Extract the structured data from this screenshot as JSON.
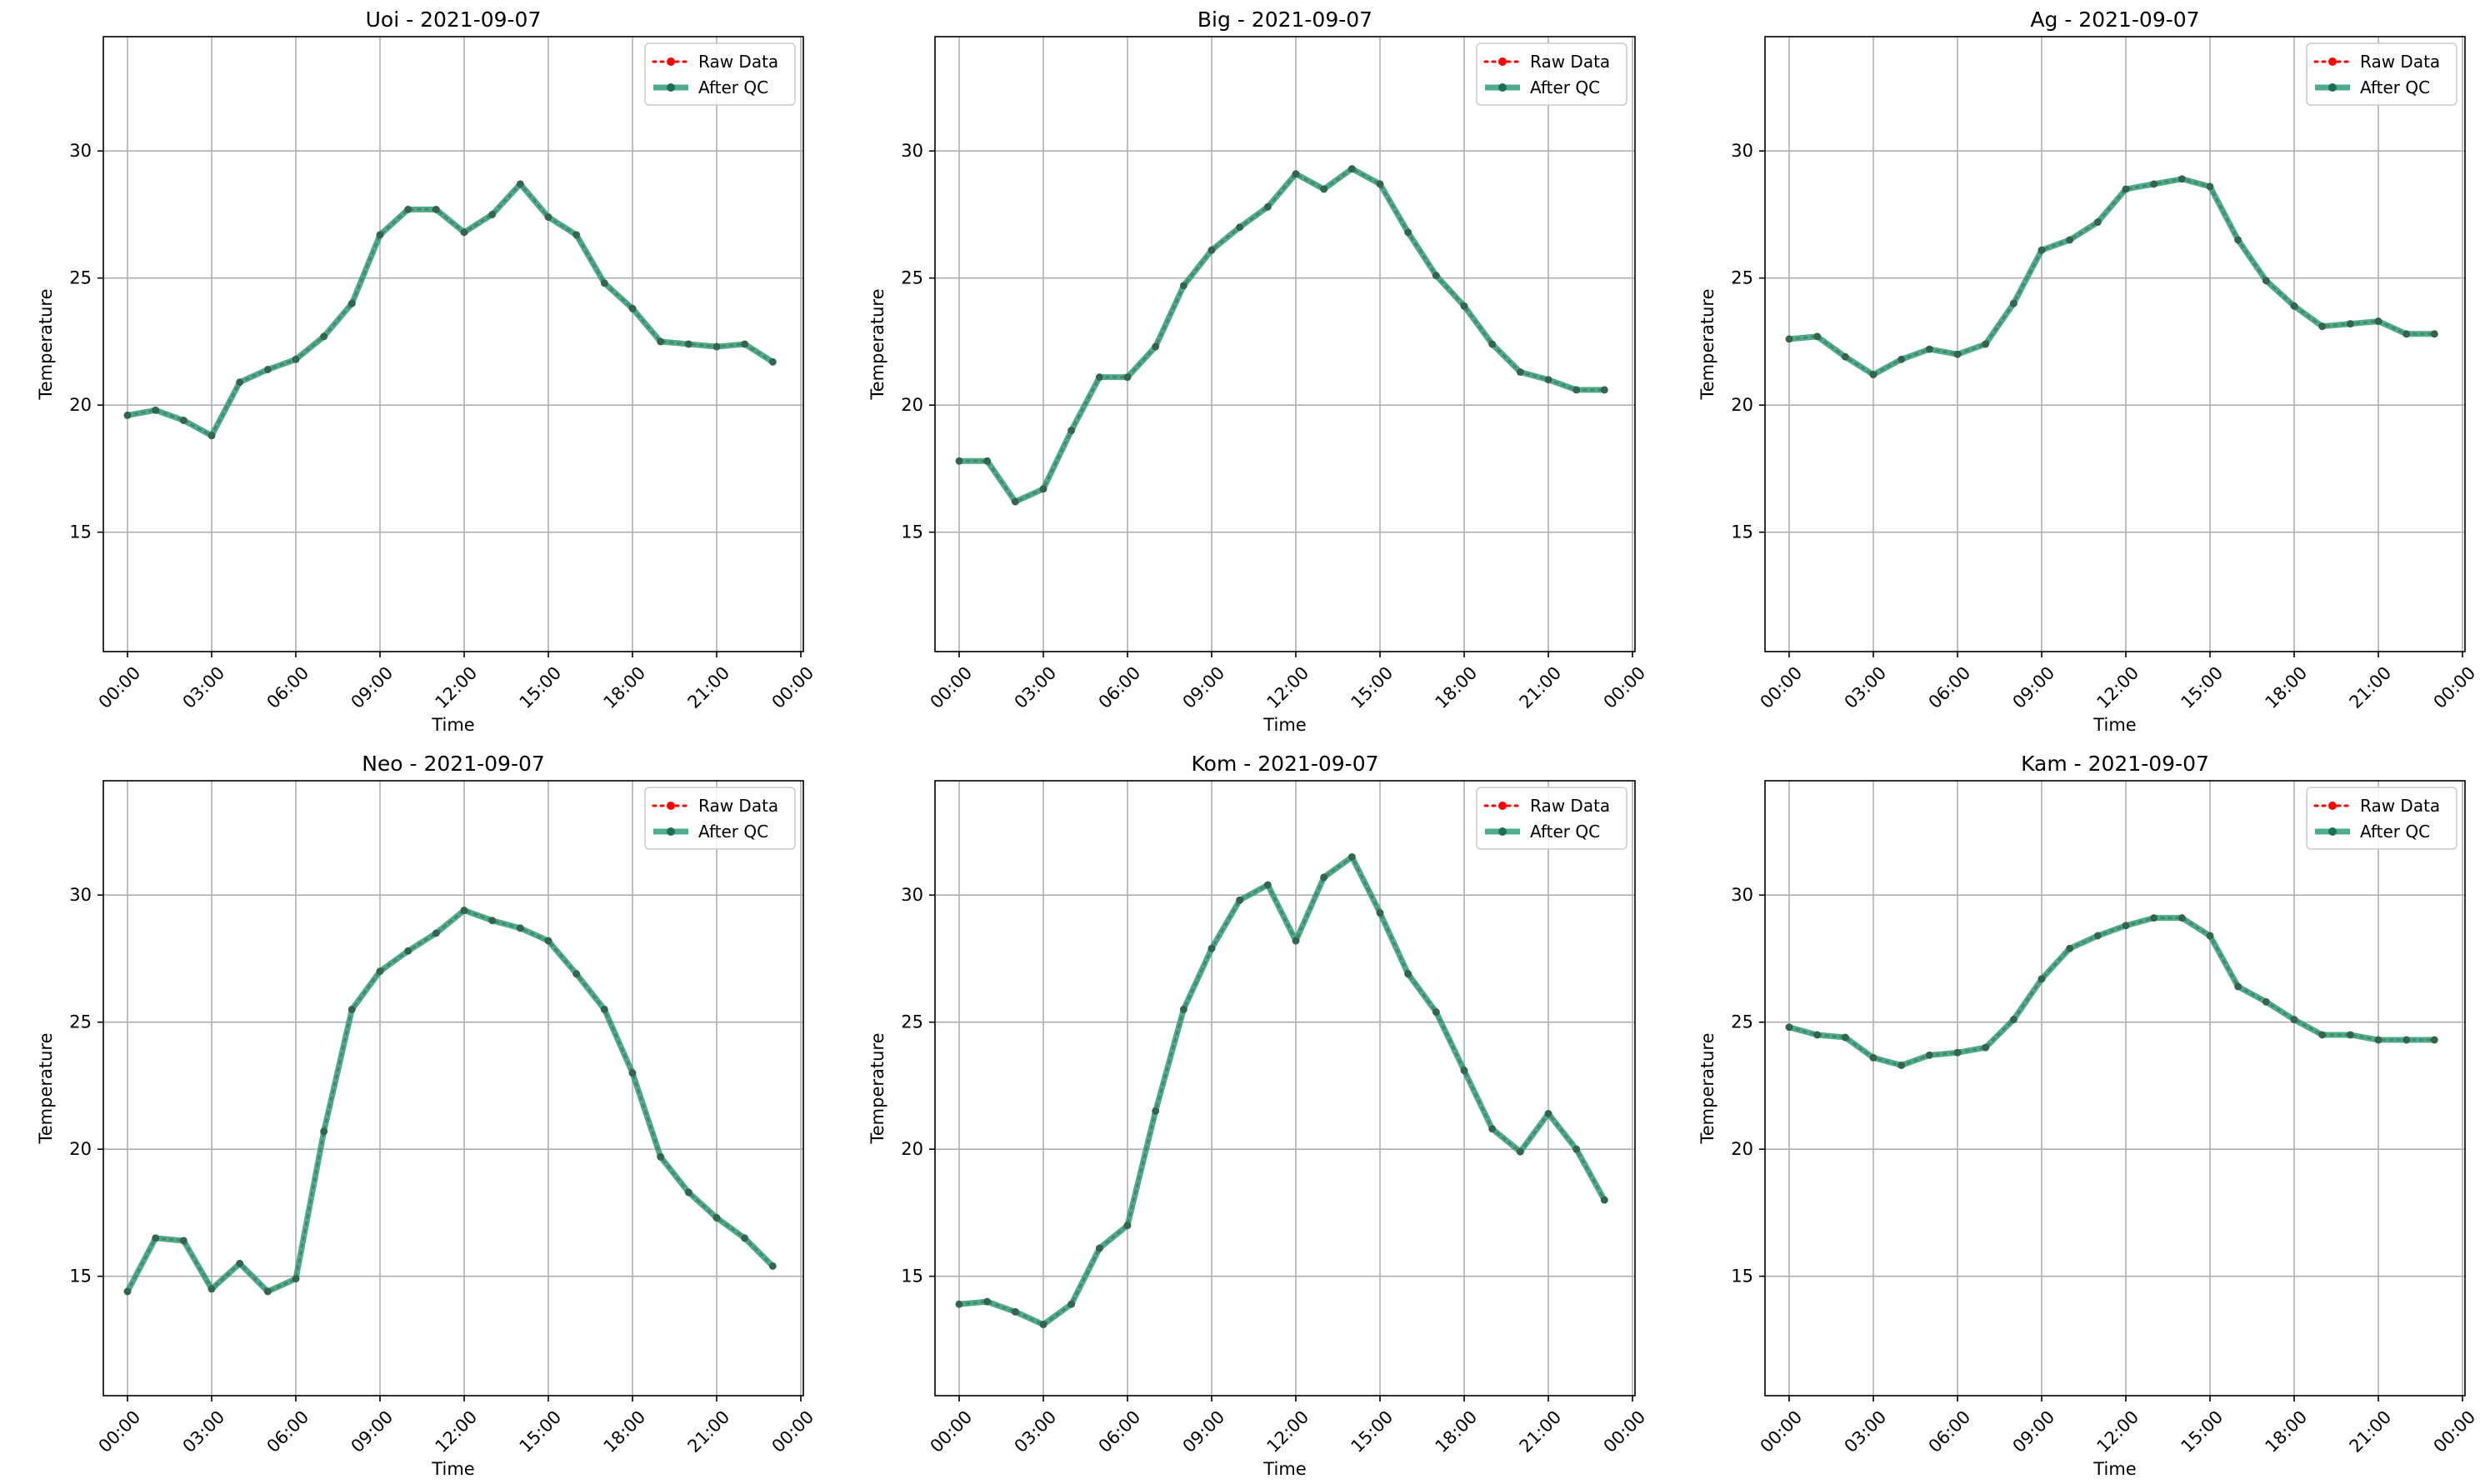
{
  "figure": {
    "legend": {
      "raw_label": "Raw Data",
      "qc_label": "After QC",
      "placement": "upper right"
    },
    "colors": {
      "raw": "#ff0000",
      "qc": "#2e9e78",
      "qc_marker": "#1f6e54",
      "grid": "#b0b0b0",
      "axis": "#000000"
    }
  },
  "chart_data": [
    {
      "type": "line",
      "title": "Uoi - 2021-09-07",
      "xlabel": "Time",
      "ylabel": "Temperature",
      "ylim": [
        10.3,
        34.5
      ],
      "x_ticks": [
        "00:00",
        "03:00",
        "06:00",
        "09:00",
        "12:00",
        "15:00",
        "18:00",
        "21:00",
        "00:00"
      ],
      "y_ticks": [
        15,
        20,
        25,
        30
      ],
      "grid": true,
      "x_hours": [
        0,
        1,
        2,
        3,
        4,
        5,
        6,
        7,
        8,
        9,
        10,
        11,
        12,
        13,
        14,
        15,
        16,
        17,
        18,
        19,
        20,
        21,
        22,
        23
      ],
      "series": [
        {
          "name": "Raw Data",
          "values": [
            19.6,
            19.8,
            19.4,
            18.8,
            20.9,
            21.4,
            21.8,
            22.7,
            24.0,
            26.7,
            27.7,
            27.7,
            26.8,
            27.5,
            28.7,
            27.4,
            26.7,
            24.8,
            23.8,
            22.5,
            22.4,
            22.3,
            22.4,
            21.7
          ]
        },
        {
          "name": "After QC",
          "values": [
            19.6,
            19.8,
            19.4,
            18.8,
            20.9,
            21.4,
            21.8,
            22.7,
            24.0,
            26.7,
            27.7,
            27.7,
            26.8,
            27.5,
            28.7,
            27.4,
            26.7,
            24.8,
            23.8,
            22.5,
            22.4,
            22.3,
            22.4,
            21.7
          ]
        }
      ]
    },
    {
      "type": "line",
      "title": "Big - 2021-09-07",
      "xlabel": "Time",
      "ylabel": "Temperature",
      "ylim": [
        10.3,
        34.5
      ],
      "x_ticks": [
        "00:00",
        "03:00",
        "06:00",
        "09:00",
        "12:00",
        "15:00",
        "18:00",
        "21:00",
        "00:00"
      ],
      "y_ticks": [
        15,
        20,
        25,
        30
      ],
      "grid": true,
      "x_hours": [
        0,
        1,
        2,
        3,
        4,
        5,
        6,
        7,
        8,
        9,
        10,
        11,
        12,
        13,
        14,
        15,
        16,
        17,
        18,
        19,
        20,
        21,
        22,
        23
      ],
      "series": [
        {
          "name": "Raw Data",
          "values": [
            17.8,
            17.8,
            16.2,
            16.7,
            19.0,
            21.1,
            21.1,
            22.3,
            24.7,
            26.1,
            27.0,
            27.8,
            29.1,
            28.5,
            29.3,
            28.7,
            26.8,
            25.1,
            23.9,
            22.4,
            21.3,
            21.0,
            20.6,
            20.6
          ]
        },
        {
          "name": "After QC",
          "values": [
            17.8,
            17.8,
            16.2,
            16.7,
            19.0,
            21.1,
            21.1,
            22.3,
            24.7,
            26.1,
            27.0,
            27.8,
            29.1,
            28.5,
            29.3,
            28.7,
            26.8,
            25.1,
            23.9,
            22.4,
            21.3,
            21.0,
            20.6,
            20.6
          ]
        }
      ]
    },
    {
      "type": "line",
      "title": "Ag - 2021-09-07",
      "xlabel": "Time",
      "ylabel": "Temperature",
      "ylim": [
        10.3,
        34.5
      ],
      "x_ticks": [
        "00:00",
        "03:00",
        "06:00",
        "09:00",
        "12:00",
        "15:00",
        "18:00",
        "21:00",
        "00:00"
      ],
      "y_ticks": [
        15,
        20,
        25,
        30
      ],
      "grid": true,
      "x_hours": [
        0,
        1,
        2,
        3,
        4,
        5,
        6,
        7,
        8,
        9,
        10,
        11,
        12,
        13,
        14,
        15,
        16,
        17,
        18,
        19,
        20,
        21,
        22,
        23
      ],
      "series": [
        {
          "name": "Raw Data",
          "values": [
            22.6,
            22.7,
            21.9,
            21.2,
            21.8,
            22.2,
            22.0,
            22.4,
            24.0,
            26.1,
            26.5,
            27.2,
            28.5,
            28.7,
            28.9,
            28.6,
            26.5,
            24.9,
            23.9,
            23.1,
            23.2,
            23.3,
            22.8,
            22.8
          ]
        },
        {
          "name": "After QC",
          "values": [
            22.6,
            22.7,
            21.9,
            21.2,
            21.8,
            22.2,
            22.0,
            22.4,
            24.0,
            26.1,
            26.5,
            27.2,
            28.5,
            28.7,
            28.9,
            28.6,
            26.5,
            24.9,
            23.9,
            23.1,
            23.2,
            23.3,
            22.8,
            22.8
          ]
        }
      ]
    },
    {
      "type": "line",
      "title": "Neo - 2021-09-07",
      "xlabel": "Time",
      "ylabel": "Temperature",
      "ylim": [
        10.3,
        34.5
      ],
      "x_ticks": [
        "00:00",
        "03:00",
        "06:00",
        "09:00",
        "12:00",
        "15:00",
        "18:00",
        "21:00",
        "00:00"
      ],
      "y_ticks": [
        15,
        20,
        25,
        30
      ],
      "grid": true,
      "x_hours": [
        0,
        1,
        2,
        3,
        4,
        5,
        6,
        7,
        8,
        9,
        10,
        11,
        12,
        13,
        14,
        15,
        16,
        17,
        18,
        19,
        20,
        21,
        22,
        23
      ],
      "series": [
        {
          "name": "Raw Data",
          "values": [
            14.4,
            16.5,
            16.4,
            14.5,
            15.5,
            14.4,
            14.9,
            20.7,
            25.5,
            27.0,
            27.8,
            28.5,
            29.4,
            29.0,
            28.7,
            28.2,
            26.9,
            25.5,
            23.0,
            19.7,
            18.3,
            17.3,
            16.5,
            15.4
          ]
        },
        {
          "name": "After QC",
          "values": [
            14.4,
            16.5,
            16.4,
            14.5,
            15.5,
            14.4,
            14.9,
            20.7,
            25.5,
            27.0,
            27.8,
            28.5,
            29.4,
            29.0,
            28.7,
            28.2,
            26.9,
            25.5,
            23.0,
            19.7,
            18.3,
            17.3,
            16.5,
            15.4
          ]
        }
      ]
    },
    {
      "type": "line",
      "title": "Kom - 2021-09-07",
      "xlabel": "Time",
      "ylabel": "Temperature",
      "ylim": [
        10.3,
        34.5
      ],
      "x_ticks": [
        "00:00",
        "03:00",
        "06:00",
        "09:00",
        "12:00",
        "15:00",
        "18:00",
        "21:00",
        "00:00"
      ],
      "y_ticks": [
        15,
        20,
        25,
        30
      ],
      "grid": true,
      "x_hours": [
        0,
        1,
        2,
        3,
        4,
        5,
        6,
        7,
        8,
        9,
        10,
        11,
        12,
        13,
        14,
        15,
        16,
        17,
        18,
        19,
        20,
        21,
        22,
        23
      ],
      "series": [
        {
          "name": "Raw Data",
          "values": [
            13.9,
            14.0,
            13.6,
            13.1,
            13.9,
            16.1,
            17.0,
            21.5,
            25.5,
            27.9,
            29.8,
            30.4,
            28.2,
            30.7,
            31.5,
            29.3,
            26.9,
            25.4,
            23.1,
            20.8,
            19.9,
            21.4,
            20.0,
            18.0
          ]
        },
        {
          "name": "After QC",
          "values": [
            13.9,
            14.0,
            13.6,
            13.1,
            13.9,
            16.1,
            17.0,
            21.5,
            25.5,
            27.9,
            29.8,
            30.4,
            28.2,
            30.7,
            31.5,
            29.3,
            26.9,
            25.4,
            23.1,
            20.8,
            19.9,
            21.4,
            20.0,
            18.0
          ]
        }
      ]
    },
    {
      "type": "line",
      "title": "Kam - 2021-09-07",
      "xlabel": "Time",
      "ylabel": "Temperature",
      "ylim": [
        10.3,
        34.5
      ],
      "x_ticks": [
        "00:00",
        "03:00",
        "06:00",
        "09:00",
        "12:00",
        "15:00",
        "18:00",
        "21:00",
        "00:00"
      ],
      "y_ticks": [
        15,
        20,
        25,
        30
      ],
      "grid": true,
      "x_hours": [
        0,
        1,
        2,
        3,
        4,
        5,
        6,
        7,
        8,
        9,
        10,
        11,
        12,
        13,
        14,
        15,
        16,
        17,
        18,
        19,
        20,
        21,
        22,
        23
      ],
      "series": [
        {
          "name": "Raw Data",
          "values": [
            24.8,
            24.5,
            24.4,
            23.6,
            23.3,
            23.7,
            23.8,
            24.0,
            25.1,
            26.7,
            27.9,
            28.4,
            28.8,
            29.1,
            29.1,
            28.4,
            26.4,
            25.8,
            25.1,
            24.5,
            24.5,
            24.3,
            24.3,
            24.3
          ]
        },
        {
          "name": "After QC",
          "values": [
            24.8,
            24.5,
            24.4,
            23.6,
            23.3,
            23.7,
            23.8,
            24.0,
            25.1,
            26.7,
            27.9,
            28.4,
            28.8,
            29.1,
            29.1,
            28.4,
            26.4,
            25.8,
            25.1,
            24.5,
            24.5,
            24.3,
            24.3,
            24.3
          ]
        }
      ]
    }
  ]
}
